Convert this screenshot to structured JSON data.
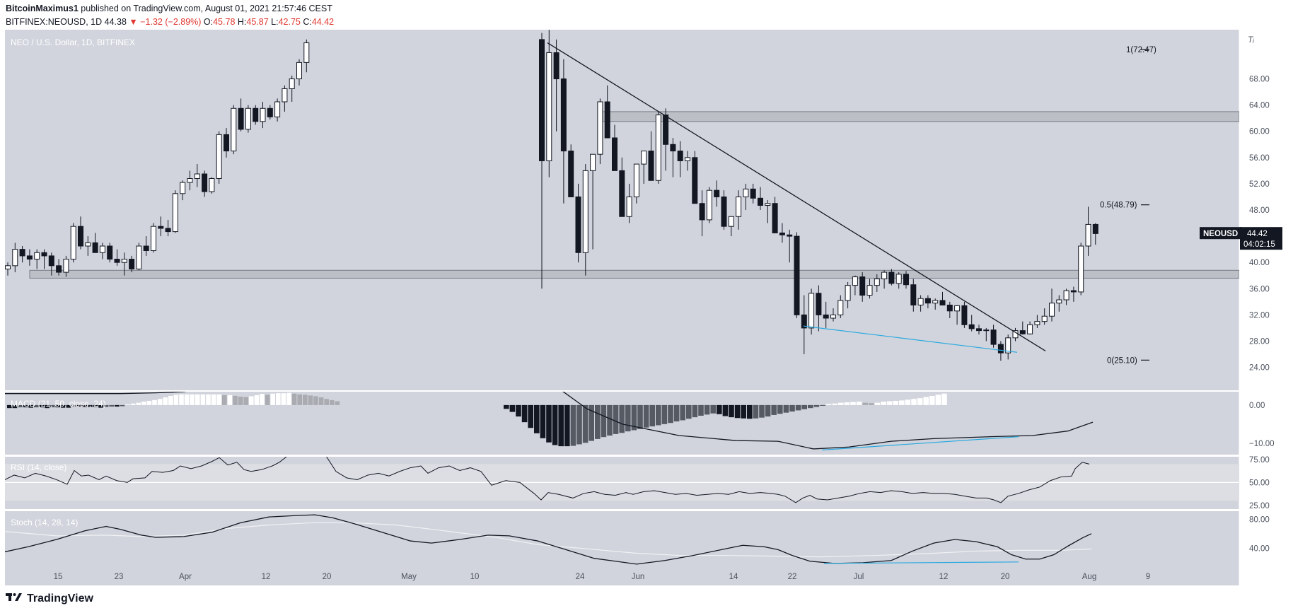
{
  "header": {
    "author": "BitcoinMaximus1",
    "published_text": "published on TradingView.com, August 01, 2021 21:57:46 CEST",
    "symbol_line": "BITFINEX:NEOUSD, 1D",
    "last": "44.38",
    "change": "−1.32 (−2.89%)",
    "o_label": "O:",
    "o": "45.78",
    "h_label": "H:",
    "h": "45.87",
    "l_label": "L:",
    "l": "42.75",
    "c_label": "C:",
    "c": "44.42"
  },
  "chart_title": "NEO / U.S. Dollar, 1D, BITFINEX",
  "price_tag": {
    "symbol": "NEOUSD",
    "price": "44.42",
    "countdown": "04:02:15"
  },
  "fib": {
    "top": "1(72.47)",
    "mid": "0.5(48.79)",
    "bottom": "0(25.10)"
  },
  "panes": {
    "macd_label": "MACD (21, 50, close, 24)",
    "rsi_label": "RSI (14, close)",
    "stoch_label": "Stoch (14, 28, 14)"
  },
  "branding": {
    "logo_text": "TradingView"
  },
  "colors": {
    "background": "#d1d4dc",
    "up_candle": "#ffffff",
    "down_candle": "#131722",
    "highlight_line": "#2aa9e0",
    "change_down": "#e0372f"
  },
  "chart_data": [
    {
      "type": "candlestick",
      "title": "NEO / U.S. Dollar, 1D, BITFINEX",
      "ylim": [
        20.5,
        75.5
      ],
      "y_ticks": [
        "24.00",
        "28.00",
        "32.00",
        "36.00",
        "40.00",
        "44.00",
        "48.00",
        "52.00",
        "56.00",
        "60.00",
        "64.00",
        "68.00"
      ],
      "x_ticks": [
        "15",
        "23",
        "Apr",
        "12",
        "20",
        "May",
        "10",
        "24",
        "Jun",
        "14",
        "22",
        "Jul",
        "12",
        "20",
        "Aug",
        "9"
      ],
      "candles_segment_1": [
        [
          39,
          40,
          38,
          39.5
        ],
        [
          39.5,
          43,
          38.5,
          42
        ],
        [
          42,
          42.5,
          40,
          41
        ],
        [
          41,
          42,
          39.5,
          40.5
        ],
        [
          40.5,
          42,
          39,
          41.5
        ],
        [
          41.5,
          42,
          39,
          41
        ],
        [
          41,
          41.5,
          38,
          39.5
        ],
        [
          39.5,
          40.5,
          38,
          38.5
        ],
        [
          38.5,
          41,
          37.8,
          40.5
        ],
        [
          40.5,
          46,
          40,
          45.5
        ],
        [
          45.5,
          47,
          42,
          42.5
        ],
        [
          42.5,
          44,
          41,
          43
        ],
        [
          43,
          44.5,
          41.5,
          41.5
        ],
        [
          41.5,
          43,
          40.5,
          42.5
        ],
        [
          42.5,
          43,
          40,
          40.5
        ],
        [
          40.5,
          42,
          39.5,
          40
        ],
        [
          40,
          41.5,
          38,
          40.5
        ],
        [
          40.5,
          41,
          38.5,
          39
        ],
        [
          39,
          43,
          38.8,
          42.5
        ],
        [
          42.5,
          44,
          41,
          41.8
        ],
        [
          41.8,
          46,
          41.5,
          45.5
        ],
        [
          45.5,
          47,
          44,
          45.2
        ],
        [
          45.2,
          46.5,
          44,
          44.7
        ],
        [
          44.7,
          51,
          44.5,
          50.5
        ],
        [
          50.5,
          52.5,
          49.5,
          52.2
        ],
        [
          52.2,
          54,
          51,
          52.8
        ],
        [
          52.8,
          55,
          51.5,
          53.5
        ],
        [
          53.5,
          54,
          50,
          50.8
        ],
        [
          50.8,
          53,
          50.5,
          52.8
        ],
        [
          52.8,
          60,
          52,
          59.5
        ],
        [
          59.5,
          60.5,
          56,
          57
        ],
        [
          57,
          64,
          56.5,
          63.5
        ],
        [
          63.5,
          65,
          60,
          60.3
        ],
        [
          60.3,
          64,
          59.8,
          63.5
        ],
        [
          63.5,
          64,
          61,
          61.5
        ],
        [
          61.5,
          64.5,
          60.5,
          63.5
        ],
        [
          63.5,
          64,
          61.8,
          62.2
        ],
        [
          62.2,
          65,
          61.5,
          64.5
        ],
        [
          64.5,
          67,
          63,
          66.5
        ],
        [
          66.5,
          68.5,
          64.5,
          68
        ],
        [
          68,
          71,
          67,
          70.5
        ],
        [
          70.5,
          74,
          69,
          73.5
        ]
      ],
      "candles_segment_2": [
        [
          74,
          75,
          36,
          55.5
        ],
        [
          55.5,
          76,
          53,
          72
        ],
        [
          72,
          74,
          60,
          68
        ],
        [
          68,
          71,
          49,
          57
        ],
        [
          57,
          58,
          51,
          50
        ],
        [
          50,
          52,
          40,
          41.5
        ],
        [
          41.5,
          55,
          38,
          54
        ],
        [
          54,
          56,
          42,
          56.5
        ],
        [
          56.5,
          65,
          55,
          64.5
        ],
        [
          64.5,
          67,
          60,
          59
        ],
        [
          59,
          61,
          54,
          54
        ],
        [
          54,
          56,
          50,
          47
        ],
        [
          47,
          52,
          46,
          50
        ],
        [
          50,
          54,
          49,
          55
        ],
        [
          55,
          57,
          52,
          57
        ],
        [
          57,
          60,
          54,
          52.5
        ],
        [
          52.5,
          63,
          52,
          62.5
        ],
        [
          62.5,
          63.5,
          54,
          58
        ],
        [
          58,
          59,
          53,
          57
        ],
        [
          57,
          58.5,
          53,
          55.5
        ],
        [
          55.5,
          57,
          54,
          56
        ],
        [
          56,
          57,
          52,
          49
        ],
        [
          49,
          51,
          44,
          46.5
        ],
        [
          46.5,
          51.5,
          46,
          51
        ],
        [
          51,
          52.5,
          48.5,
          50
        ],
        [
          50,
          51,
          45,
          45.5
        ],
        [
          45.5,
          47,
          44,
          47
        ],
        [
          47,
          51,
          45,
          50
        ],
        [
          50,
          52,
          48,
          51.2
        ],
        [
          51.2,
          52,
          49,
          49.8
        ],
        [
          49.8,
          51.5,
          48,
          48.7
        ],
        [
          48.7,
          49.5,
          46,
          49
        ],
        [
          49,
          50,
          45,
          44.5
        ],
        [
          44.5,
          46,
          43,
          44.2
        ],
        [
          44.2,
          45,
          40,
          44
        ],
        [
          44,
          44.6,
          31.5,
          32
        ],
        [
          32,
          35,
          26,
          30
        ],
        [
          30,
          36,
          29,
          35.3
        ],
        [
          35.3,
          36.5,
          29.5,
          32
        ],
        [
          32,
          34,
          30,
          31.5
        ],
        [
          31.5,
          33,
          31,
          32
        ],
        [
          32,
          35,
          31.5,
          34.2
        ],
        [
          34.2,
          37,
          33,
          36.5
        ],
        [
          36.5,
          38,
          35,
          37.8
        ],
        [
          37.8,
          38.5,
          34,
          35
        ],
        [
          35,
          37.5,
          34.5,
          36.5
        ],
        [
          36.5,
          38.2,
          35.5,
          37.5
        ],
        [
          37.5,
          38.8,
          36,
          38.5
        ],
        [
          38.5,
          39,
          36.5,
          36.8
        ],
        [
          36.8,
          38.5,
          36,
          38.2
        ],
        [
          38.2,
          38.7,
          36,
          36.6
        ],
        [
          36.6,
          37.5,
          32.5,
          33.5
        ],
        [
          33.5,
          35,
          32.5,
          34.5
        ],
        [
          34.5,
          35,
          33,
          33.8
        ],
        [
          33.8,
          34.5,
          32.8,
          34.2
        ],
        [
          34.2,
          35.5,
          33.5,
          33.5
        ],
        [
          33.5,
          34,
          31.5,
          32.6
        ],
        [
          32.6,
          33.5,
          30.5,
          33.4
        ],
        [
          33.4,
          34,
          30,
          30.5
        ],
        [
          30.5,
          32,
          29.5,
          29.9
        ],
        [
          29.9,
          30.5,
          29,
          29.6
        ],
        [
          29.6,
          30,
          28,
          29.7
        ],
        [
          29.7,
          30.5,
          27,
          27.5
        ],
        [
          27.5,
          28,
          25,
          26.2
        ],
        [
          26.2,
          29,
          25.2,
          28.5
        ],
        [
          28.5,
          30,
          28,
          29.6
        ],
        [
          29.6,
          31,
          29,
          29.1
        ],
        [
          29.1,
          31,
          29,
          30.5
        ],
        [
          30.5,
          32,
          30,
          31
        ],
        [
          31,
          33,
          30.5,
          31.8
        ],
        [
          31.8,
          36,
          31,
          33.8
        ],
        [
          33.8,
          35,
          32.5,
          34.3
        ],
        [
          34.3,
          36,
          33.5,
          35.7
        ],
        [
          35.7,
          36.3,
          34,
          35.5
        ],
        [
          35.5,
          43,
          35,
          42.5
        ],
        [
          42.5,
          48.5,
          41,
          45.8
        ],
        [
          45.8,
          46,
          42.7,
          44.4
        ]
      ],
      "fibonacci": [
        {
          "level": 1,
          "value": 72.47
        },
        {
          "level": 0.5,
          "value": 48.79
        },
        {
          "level": 0,
          "value": 25.1
        }
      ],
      "last_price": 44.42
    },
    {
      "type": "macd",
      "title": "MACD (21, 50, close, 24)",
      "ylim": [
        -13,
        3.5
      ],
      "y_ticks": [
        "0.00",
        "−10.00"
      ]
    },
    {
      "type": "line",
      "title": "RSI (14, close)",
      "ylim": [
        21,
        78
      ],
      "y_ticks": [
        "75.00",
        "50.00",
        "25.00"
      ],
      "bands": [
        30,
        70
      ]
    },
    {
      "type": "line",
      "title": "Stoch (14, 28, 14)",
      "ylim": [
        14,
        91
      ],
      "y_ticks": [
        "80.00",
        "40.00"
      ]
    }
  ]
}
